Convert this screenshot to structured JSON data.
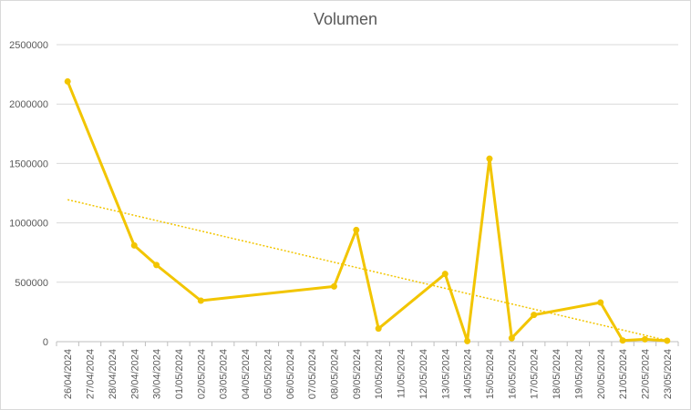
{
  "chart_data": {
    "type": "line",
    "title": "Volumen",
    "xlabel": "",
    "ylabel": "",
    "ylim": [
      0,
      2500000
    ],
    "yticks": [
      "0",
      "500000",
      "1000000",
      "1500000",
      "2000000",
      "2500000"
    ],
    "grid": true,
    "legend": "none",
    "colors": {
      "series": "#f2c500",
      "trend": "#f2c500",
      "grid": "#d9d9d9",
      "text": "#595959"
    },
    "categories": [
      "26/04/2024",
      "27/04/2024",
      "28/04/2024",
      "29/04/2024",
      "30/04/2024",
      "01/05/2024",
      "02/05/2024",
      "03/05/2024",
      "04/05/2024",
      "05/05/2024",
      "06/05/2024",
      "07/05/2024",
      "08/05/2024",
      "09/05/2024",
      "10/05/2024",
      "11/05/2024",
      "12/05/2024",
      "13/05/2024",
      "14/05/2024",
      "15/05/2024",
      "16/05/2024",
      "17/05/2024",
      "18/05/2024",
      "19/05/2024",
      "20/05/2024",
      "21/05/2024",
      "22/05/2024",
      "23/05/2024"
    ],
    "series": [
      {
        "points": [
          [
            "26/04/2024",
            2190000
          ],
          [
            "29/04/2024",
            810000
          ],
          [
            "30/04/2024",
            645000
          ],
          [
            "02/05/2024",
            345000
          ],
          [
            "08/05/2024",
            465000
          ],
          [
            "09/05/2024",
            940000
          ],
          [
            "10/05/2024",
            110000
          ],
          [
            "13/05/2024",
            570000
          ],
          [
            "14/05/2024",
            5000
          ],
          [
            "15/05/2024",
            1540000
          ],
          [
            "16/05/2024",
            30000
          ],
          [
            "17/05/2024",
            225000
          ],
          [
            "20/05/2024",
            330000
          ],
          [
            "21/05/2024",
            10000
          ],
          [
            "22/05/2024",
            20000
          ],
          [
            "23/05/2024",
            8000
          ]
        ]
      }
    ],
    "trendline": {
      "type": "linear",
      "start": [
        "26/04/2024",
        1195000
      ],
      "end": [
        "23/05/2024",
        10000
      ]
    }
  }
}
